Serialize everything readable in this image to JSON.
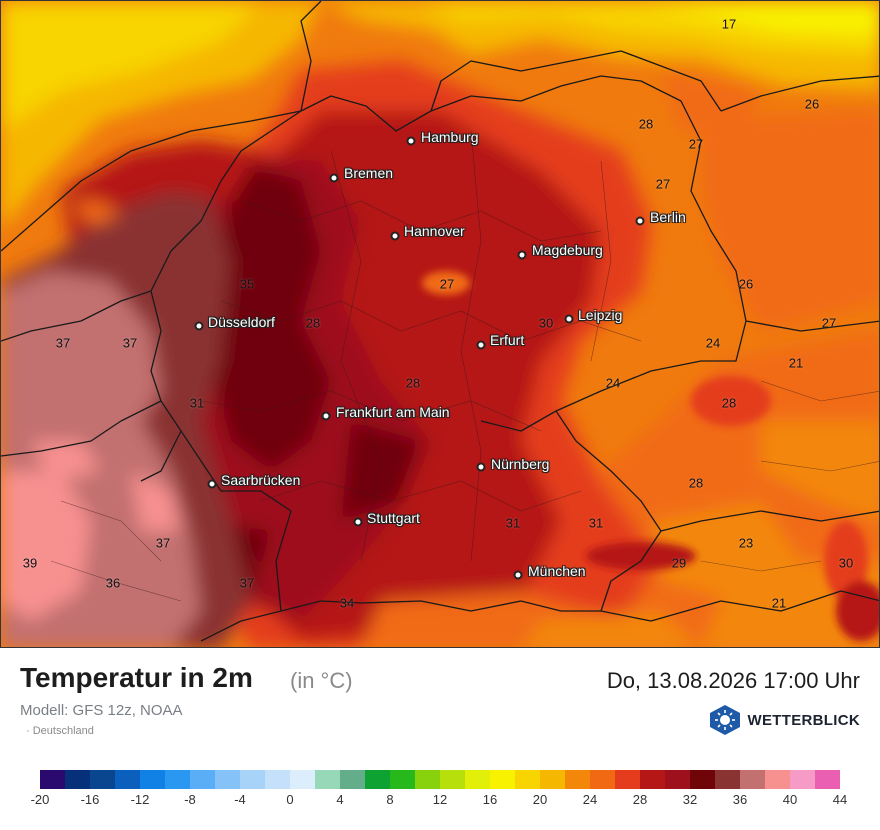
{
  "map": {
    "cities": [
      {
        "name": "Hamburg",
        "id": "hamburg"
      },
      {
        "name": "Bremen",
        "id": "bremen"
      },
      {
        "name": "Hannover",
        "id": "hannover"
      },
      {
        "name": "Berlin",
        "id": "berlin"
      },
      {
        "name": "Magdeburg",
        "id": "magdeburg"
      },
      {
        "name": "Düsseldorf",
        "id": "duesseldorf"
      },
      {
        "name": "Leipzig",
        "id": "leipzig"
      },
      {
        "name": "Erfurt",
        "id": "erfurt"
      },
      {
        "name": "Frankfurt am Main",
        "id": "frankfurt"
      },
      {
        "name": "Nürnberg",
        "id": "nuernberg"
      },
      {
        "name": "Saarbrücken",
        "id": "saarbruecken"
      },
      {
        "name": "Stuttgart",
        "id": "stuttgart"
      },
      {
        "name": "München",
        "id": "muenchen"
      }
    ],
    "temperatures": [
      "17",
      "26",
      "28",
      "27",
      "27",
      "26",
      "27",
      "35",
      "28",
      "27",
      "30",
      "24",
      "21",
      "37",
      "37",
      "24",
      "28",
      "28",
      "31",
      "28",
      "31",
      "31",
      "23",
      "29",
      "30",
      "39",
      "37",
      "36",
      "37",
      "34",
      "21"
    ]
  },
  "footer": {
    "title": "Temperatur in 2m",
    "unit": "(in °C)",
    "datetime": "Do, 13.08.2026 17:00 Uhr",
    "model": "Modell: GFS 12z, NOAA",
    "region": "· Deutschland",
    "brand": "WETTERBLICK"
  },
  "legend": {
    "colors": [
      "#2a0a6e",
      "#07307a",
      "#0a4690",
      "#0b60bd",
      "#1181e6",
      "#2a97f0",
      "#5aaef5",
      "#84c2f7",
      "#a8d3f8",
      "#c4e0fa",
      "#dceefb",
      "#97d8b8",
      "#64ad8a",
      "#0ea232",
      "#27b91b",
      "#87d20d",
      "#b6df0b",
      "#e2ef08",
      "#f8f200",
      "#f8d400",
      "#f6b700",
      "#f38709",
      "#f16a13",
      "#e43c1c",
      "#b51717",
      "#9e111c",
      "#6f0508",
      "#8a3333",
      "#c27070",
      "#f79190",
      "#f69bc6",
      "#ea5fb2"
    ],
    "ticks": [
      "-20",
      "-16",
      "-12",
      "-8",
      "-4",
      "0",
      "4",
      "8",
      "12",
      "16",
      "20",
      "24",
      "28",
      "32",
      "36",
      "40",
      "44"
    ]
  }
}
